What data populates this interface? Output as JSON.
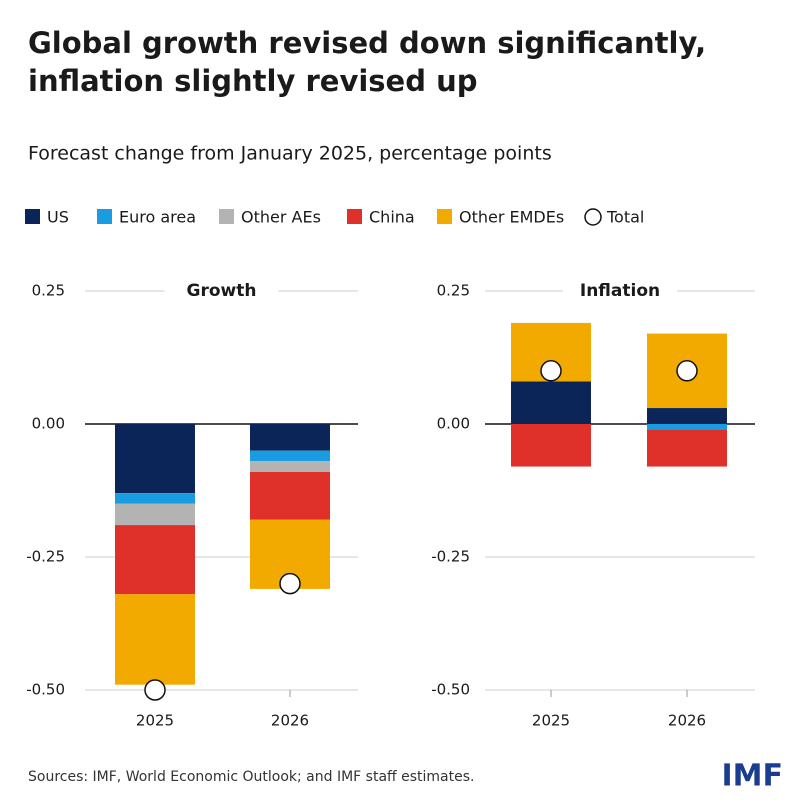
{
  "title": "Global growth revised down significantly, inflation slightly revised up",
  "subtitle": "Forecast change from January 2025, percentage points",
  "source": "Sources: IMF, World Economic Outlook; and IMF staff estimates.",
  "logo": "IMF",
  "chart_data": [
    {
      "type": "stacked_bar",
      "title": "Growth",
      "categories": [
        "2025",
        "2026"
      ],
      "series": [
        {
          "name": "US",
          "color": "#0b2559",
          "values": [
            -0.13,
            -0.05
          ]
        },
        {
          "name": "Euro area",
          "color": "#1a9ce0",
          "values": [
            -0.02,
            -0.02
          ]
        },
        {
          "name": "Other AEs",
          "color": "#b3b3b3",
          "values": [
            -0.04,
            -0.02
          ]
        },
        {
          "name": "China",
          "color": "#e0302a",
          "values": [
            -0.13,
            -0.09
          ]
        },
        {
          "name": "Other EMDEs",
          "color": "#f2a900",
          "values": [
            -0.17,
            -0.13
          ]
        }
      ],
      "total": {
        "name": "Total",
        "values": [
          -0.5,
          -0.3
        ]
      },
      "ylim": [
        -0.5,
        0.25
      ],
      "yticks": [
        0.25,
        {
          "value": 0,
          "label": "0.00"
        },
        -0.25,
        {
          "value": -0.5,
          "label": "-0.50"
        }
      ],
      "grid": true
    },
    {
      "type": "stacked_bar",
      "title": "Inflation",
      "categories": [
        "2025",
        "2026"
      ],
      "series": [
        {
          "name": "US",
          "color": "#0b2559",
          "values": [
            0.08,
            0.03
          ]
        },
        {
          "name": "Euro area",
          "color": "#1a9ce0",
          "values": [
            0,
            -0.01
          ]
        },
        {
          "name": "Other AEs",
          "color": "#b3b3b3",
          "values": [
            0,
            0
          ]
        },
        {
          "name": "China",
          "color": "#e0302a",
          "values": [
            -0.08,
            -0.07
          ]
        },
        {
          "name": "Other EMDEs",
          "color": "#f2a900",
          "values": [
            0.11,
            0.14
          ]
        }
      ],
      "total": {
        "name": "Total",
        "values": [
          0.1,
          0.1
        ]
      },
      "ylim": [
        -0.5,
        0.25
      ],
      "yticks": [
        0.25,
        {
          "value": 0,
          "label": "0.00"
        },
        -0.25,
        {
          "value": -0.5,
          "label": "-0.50"
        }
      ],
      "grid": true
    }
  ]
}
